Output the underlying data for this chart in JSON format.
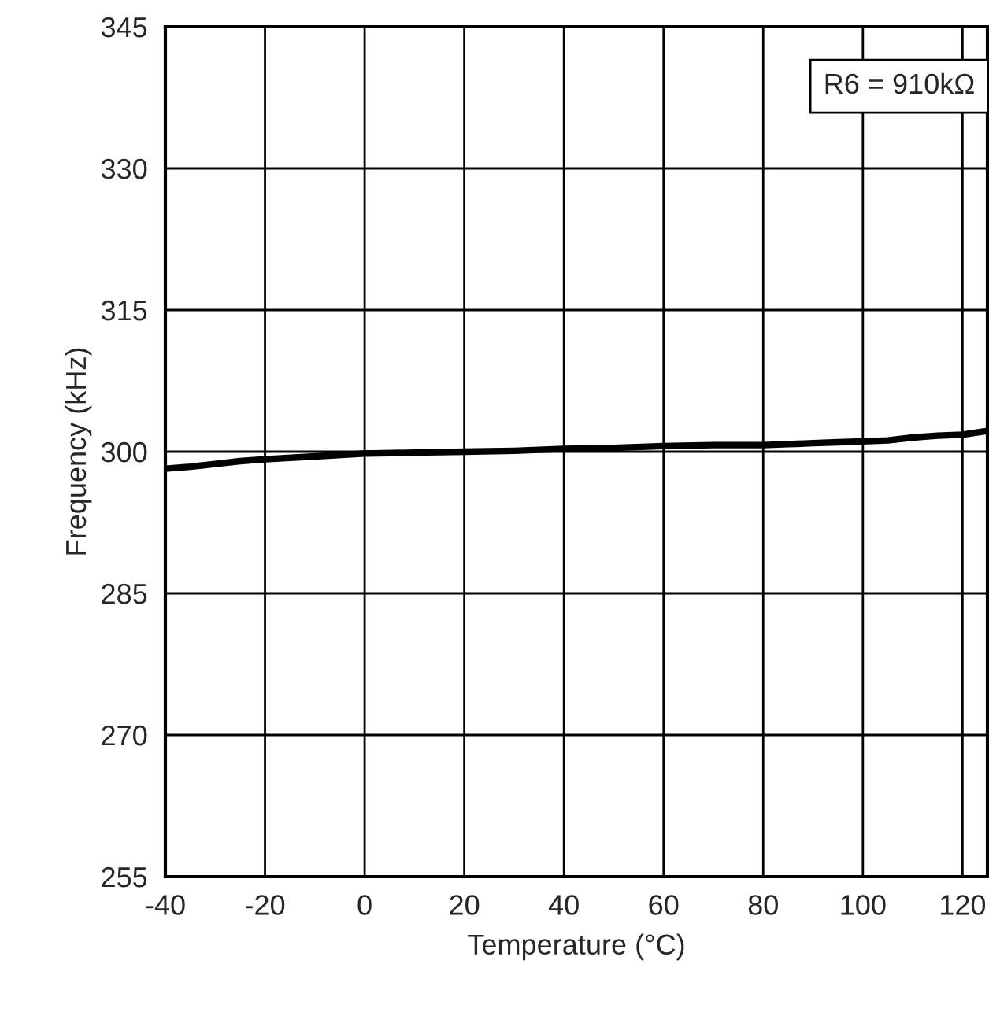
{
  "chart_data": {
    "type": "line",
    "xlabel": "Temperature (°C)",
    "ylabel": "Frequency (kHz)",
    "x": [
      -40,
      -35,
      -30,
      -25,
      -20,
      -10,
      0,
      10,
      20,
      30,
      40,
      50,
      60,
      70,
      80,
      85,
      90,
      95,
      100,
      105,
      110,
      115,
      120,
      125
    ],
    "series": [
      {
        "color": "#000000",
        "values": [
          298.2,
          298.4,
          298.7,
          299.0,
          299.2,
          299.5,
          299.8,
          299.9,
          300.0,
          300.1,
          300.3,
          300.4,
          300.6,
          300.7,
          300.7,
          300.8,
          300.9,
          301.0,
          301.1,
          301.2,
          301.5,
          301.7,
          301.8,
          302.2
        ]
      }
    ],
    "xlim": [
      -40,
      125
    ],
    "ylim": [
      255,
      345
    ],
    "xticks": [
      -40,
      -20,
      0,
      20,
      40,
      60,
      80,
      100,
      120
    ],
    "yticks": [
      255,
      270,
      285,
      300,
      315,
      330,
      345
    ],
    "grid": true,
    "legend": false,
    "marker": "none",
    "line_style": "solid",
    "annotations": [
      "R6 = 910kΩ"
    ]
  }
}
